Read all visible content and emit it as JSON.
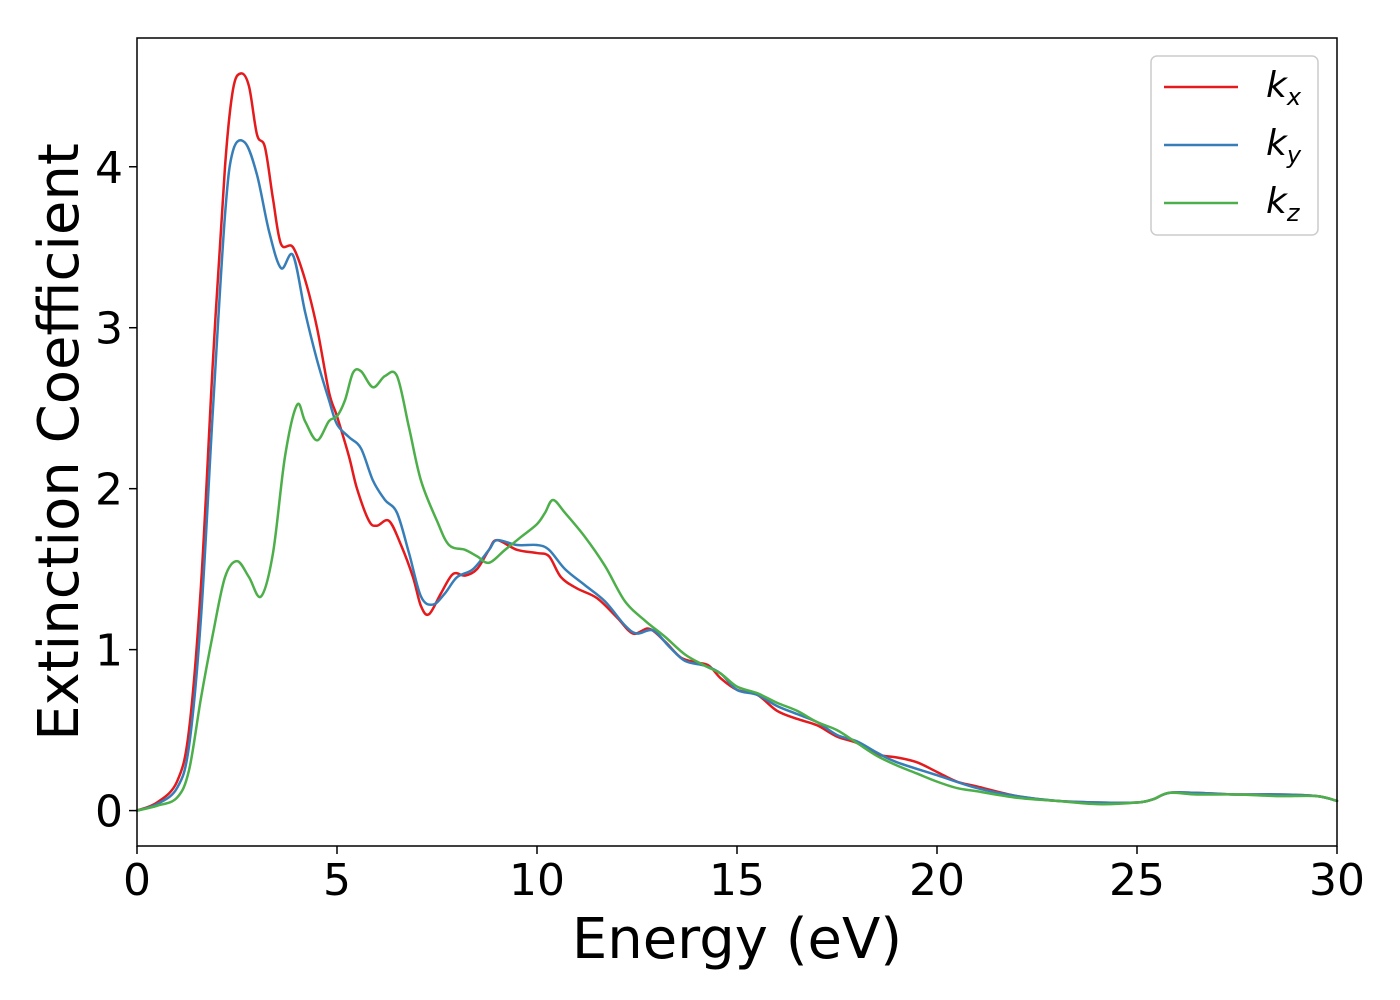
{
  "chart_data": {
    "type": "line",
    "title": "",
    "xlabel": "Energy (eV)",
    "ylabel": "Extinction Coefficient",
    "xlim": [
      0,
      30
    ],
    "ylim": [
      -0.22,
      4.8
    ],
    "xticks": [
      0,
      5,
      10,
      15,
      20,
      25,
      30
    ],
    "yticks": [
      0,
      1,
      2,
      3,
      4
    ],
    "grid": false,
    "legend_position": "top-right",
    "series": [
      {
        "name": "k",
        "subscript": "x",
        "color": "#e41a1c",
        "points": [
          [
            0,
            0
          ],
          [
            0.5,
            0.05
          ],
          [
            1.0,
            0.18
          ],
          [
            1.3,
            0.5
          ],
          [
            1.6,
            1.4
          ],
          [
            1.9,
            2.8
          ],
          [
            2.2,
            4.0
          ],
          [
            2.4,
            4.48
          ],
          [
            2.6,
            4.58
          ],
          [
            2.8,
            4.5
          ],
          [
            3.0,
            4.2
          ],
          [
            3.2,
            4.12
          ],
          [
            3.4,
            3.8
          ],
          [
            3.6,
            3.52
          ],
          [
            3.9,
            3.5
          ],
          [
            4.2,
            3.3
          ],
          [
            4.5,
            3.0
          ],
          [
            4.8,
            2.6
          ],
          [
            5.0,
            2.45
          ],
          [
            5.3,
            2.2
          ],
          [
            5.5,
            2.0
          ],
          [
            5.8,
            1.8
          ],
          [
            6.0,
            1.77
          ],
          [
            6.3,
            1.8
          ],
          [
            6.6,
            1.65
          ],
          [
            6.9,
            1.45
          ],
          [
            7.1,
            1.27
          ],
          [
            7.3,
            1.22
          ],
          [
            7.6,
            1.35
          ],
          [
            7.9,
            1.47
          ],
          [
            8.2,
            1.46
          ],
          [
            8.5,
            1.5
          ],
          [
            8.8,
            1.62
          ],
          [
            9.0,
            1.68
          ],
          [
            9.5,
            1.62
          ],
          [
            10.0,
            1.6
          ],
          [
            10.3,
            1.58
          ],
          [
            10.6,
            1.45
          ],
          [
            11.0,
            1.38
          ],
          [
            11.5,
            1.32
          ],
          [
            12.0,
            1.2
          ],
          [
            12.4,
            1.1
          ],
          [
            12.8,
            1.13
          ],
          [
            13.2,
            1.05
          ],
          [
            13.6,
            0.95
          ],
          [
            14.0,
            0.92
          ],
          [
            14.3,
            0.9
          ],
          [
            14.6,
            0.82
          ],
          [
            15.0,
            0.75
          ],
          [
            15.5,
            0.72
          ],
          [
            16.0,
            0.62
          ],
          [
            16.5,
            0.57
          ],
          [
            17.0,
            0.53
          ],
          [
            17.5,
            0.46
          ],
          [
            18.0,
            0.42
          ],
          [
            18.5,
            0.35
          ],
          [
            19.0,
            0.33
          ],
          [
            19.5,
            0.3
          ],
          [
            20.0,
            0.24
          ],
          [
            20.5,
            0.18
          ],
          [
            21.0,
            0.15
          ],
          [
            22.0,
            0.09
          ],
          [
            23.0,
            0.06
          ],
          [
            24.0,
            0.05
          ],
          [
            25.0,
            0.05
          ],
          [
            25.4,
            0.07
          ],
          [
            25.8,
            0.11
          ],
          [
            26.5,
            0.11
          ],
          [
            27.5,
            0.1
          ],
          [
            28.5,
            0.1
          ],
          [
            29.5,
            0.09
          ],
          [
            30.0,
            0.06
          ]
        ]
      },
      {
        "name": "k",
        "subscript": "y",
        "color": "#377eb8",
        "points": [
          [
            0,
            0
          ],
          [
            0.5,
            0.04
          ],
          [
            1.0,
            0.14
          ],
          [
            1.3,
            0.4
          ],
          [
            1.6,
            1.2
          ],
          [
            1.9,
            2.5
          ],
          [
            2.2,
            3.7
          ],
          [
            2.4,
            4.1
          ],
          [
            2.7,
            4.15
          ],
          [
            3.0,
            3.95
          ],
          [
            3.3,
            3.6
          ],
          [
            3.6,
            3.37
          ],
          [
            3.9,
            3.45
          ],
          [
            4.2,
            3.1
          ],
          [
            4.5,
            2.8
          ],
          [
            4.8,
            2.55
          ],
          [
            5.0,
            2.4
          ],
          [
            5.3,
            2.32
          ],
          [
            5.6,
            2.25
          ],
          [
            5.9,
            2.05
          ],
          [
            6.2,
            1.93
          ],
          [
            6.5,
            1.85
          ],
          [
            6.8,
            1.6
          ],
          [
            7.1,
            1.33
          ],
          [
            7.4,
            1.28
          ],
          [
            7.7,
            1.35
          ],
          [
            8.0,
            1.45
          ],
          [
            8.4,
            1.5
          ],
          [
            8.8,
            1.62
          ],
          [
            9.0,
            1.68
          ],
          [
            9.5,
            1.65
          ],
          [
            10.0,
            1.65
          ],
          [
            10.3,
            1.62
          ],
          [
            10.7,
            1.5
          ],
          [
            11.2,
            1.4
          ],
          [
            11.7,
            1.3
          ],
          [
            12.2,
            1.15
          ],
          [
            12.5,
            1.1
          ],
          [
            12.9,
            1.12
          ],
          [
            13.3,
            1.02
          ],
          [
            13.7,
            0.93
          ],
          [
            14.2,
            0.9
          ],
          [
            14.6,
            0.85
          ],
          [
            15.0,
            0.75
          ],
          [
            15.5,
            0.72
          ],
          [
            16.0,
            0.65
          ],
          [
            16.5,
            0.6
          ],
          [
            17.0,
            0.55
          ],
          [
            17.5,
            0.47
          ],
          [
            18.0,
            0.43
          ],
          [
            18.5,
            0.36
          ],
          [
            19.0,
            0.3
          ],
          [
            20.0,
            0.22
          ],
          [
            21.0,
            0.14
          ],
          [
            22.0,
            0.09
          ],
          [
            23.0,
            0.06
          ],
          [
            24.0,
            0.05
          ],
          [
            25.0,
            0.05
          ],
          [
            25.4,
            0.07
          ],
          [
            25.8,
            0.11
          ],
          [
            26.5,
            0.11
          ],
          [
            27.5,
            0.1
          ],
          [
            28.5,
            0.1
          ],
          [
            29.5,
            0.09
          ],
          [
            30.0,
            0.06
          ]
        ]
      },
      {
        "name": "k",
        "subscript": "z",
        "color": "#4daf4a",
        "points": [
          [
            0,
            0
          ],
          [
            0.5,
            0.03
          ],
          [
            1.0,
            0.08
          ],
          [
            1.3,
            0.25
          ],
          [
            1.6,
            0.7
          ],
          [
            1.9,
            1.1
          ],
          [
            2.2,
            1.45
          ],
          [
            2.5,
            1.55
          ],
          [
            2.8,
            1.45
          ],
          [
            3.1,
            1.33
          ],
          [
            3.4,
            1.6
          ],
          [
            3.7,
            2.2
          ],
          [
            4.0,
            2.52
          ],
          [
            4.2,
            2.42
          ],
          [
            4.5,
            2.3
          ],
          [
            4.8,
            2.42
          ],
          [
            5.0,
            2.45
          ],
          [
            5.2,
            2.55
          ],
          [
            5.4,
            2.72
          ],
          [
            5.6,
            2.73
          ],
          [
            5.9,
            2.63
          ],
          [
            6.2,
            2.7
          ],
          [
            6.5,
            2.7
          ],
          [
            6.8,
            2.38
          ],
          [
            7.1,
            2.05
          ],
          [
            7.5,
            1.8
          ],
          [
            7.8,
            1.65
          ],
          [
            8.2,
            1.62
          ],
          [
            8.5,
            1.58
          ],
          [
            8.8,
            1.54
          ],
          [
            9.2,
            1.62
          ],
          [
            9.6,
            1.7
          ],
          [
            10.0,
            1.78
          ],
          [
            10.2,
            1.85
          ],
          [
            10.4,
            1.93
          ],
          [
            10.7,
            1.85
          ],
          [
            11.2,
            1.7
          ],
          [
            11.7,
            1.52
          ],
          [
            12.2,
            1.3
          ],
          [
            12.7,
            1.18
          ],
          [
            13.2,
            1.08
          ],
          [
            13.7,
            0.97
          ],
          [
            14.2,
            0.9
          ],
          [
            14.6,
            0.85
          ],
          [
            15.0,
            0.77
          ],
          [
            15.5,
            0.73
          ],
          [
            16.0,
            0.67
          ],
          [
            16.5,
            0.62
          ],
          [
            17.0,
            0.55
          ],
          [
            17.5,
            0.5
          ],
          [
            18.0,
            0.42
          ],
          [
            18.5,
            0.34
          ],
          [
            19.0,
            0.28
          ],
          [
            19.5,
            0.23
          ],
          [
            20.0,
            0.18
          ],
          [
            20.5,
            0.14
          ],
          [
            21.0,
            0.12
          ],
          [
            22.0,
            0.08
          ],
          [
            23.0,
            0.06
          ],
          [
            24.0,
            0.04
          ],
          [
            25.0,
            0.05
          ],
          [
            25.4,
            0.07
          ],
          [
            25.8,
            0.11
          ],
          [
            26.5,
            0.1
          ],
          [
            27.5,
            0.1
          ],
          [
            28.5,
            0.09
          ],
          [
            29.5,
            0.09
          ],
          [
            30.0,
            0.06
          ]
        ]
      }
    ]
  }
}
